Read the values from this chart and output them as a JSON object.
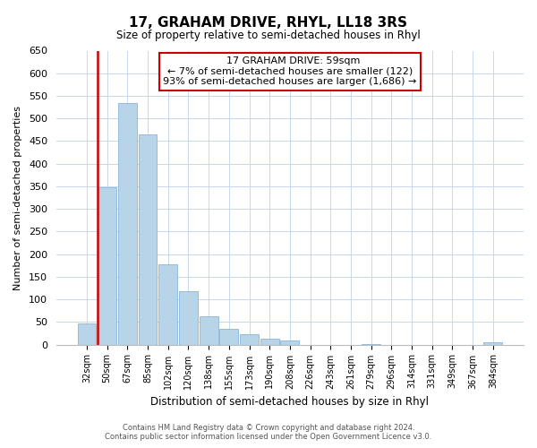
{
  "title": "17, GRAHAM DRIVE, RHYL, LL18 3RS",
  "subtitle": "Size of property relative to semi-detached houses in Rhyl",
  "xlabel": "Distribution of semi-detached houses by size in Rhyl",
  "ylabel": "Number of semi-detached properties",
  "bin_labels": [
    "32sqm",
    "50sqm",
    "67sqm",
    "85sqm",
    "102sqm",
    "120sqm",
    "138sqm",
    "155sqm",
    "173sqm",
    "190sqm",
    "208sqm",
    "226sqm",
    "243sqm",
    "261sqm",
    "279sqm",
    "296sqm",
    "314sqm",
    "331sqm",
    "349sqm",
    "367sqm",
    "384sqm"
  ],
  "bar_heights": [
    47,
    348,
    535,
    465,
    178,
    118,
    62,
    35,
    22,
    14,
    10,
    0,
    0,
    0,
    2,
    0,
    0,
    0,
    0,
    0,
    5
  ],
  "bar_color": "#b8d4e8",
  "bar_edge_color": "#7aadd4",
  "highlight_color": "#cc0000",
  "highlight_index": 1,
  "ylim": [
    0,
    650
  ],
  "yticks": [
    0,
    50,
    100,
    150,
    200,
    250,
    300,
    350,
    400,
    450,
    500,
    550,
    600,
    650
  ],
  "annotation_title": "17 GRAHAM DRIVE: 59sqm",
  "annotation_line1": "← 7% of semi-detached houses are smaller (122)",
  "annotation_line2": "93% of semi-detached houses are larger (1,686) →",
  "footer_line1": "Contains HM Land Registry data © Crown copyright and database right 2024.",
  "footer_line2": "Contains public sector information licensed under the Open Government Licence v3.0.",
  "background_color": "#ffffff",
  "grid_color": "#c8d8ec"
}
